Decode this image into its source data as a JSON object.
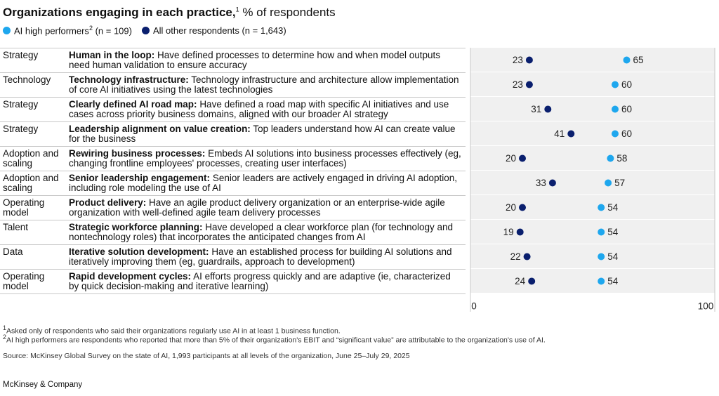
{
  "chart_data": {
    "type": "dotplot",
    "title": "Organizations engaging in each practice,",
    "title_note": "1",
    "subtitle": "% of respondents",
    "domains": [
      "Strategy",
      "Technology",
      "Strategy",
      "Strategy",
      "Adoption and scaling",
      "Adoption and scaling",
      "Operating model",
      "Talent",
      "Data",
      "Operating model"
    ],
    "categories": [
      "Human in the loop:",
      "Technology infrastructure:",
      "Clearly defined AI road map:",
      "Leadership alignment on value creation:",
      "Rewiring business processes:",
      "Senior leadership engagement:",
      "Product delivery:",
      "Strategic workforce planning:",
      "Iterative solution development:",
      "Rapid development cycles:"
    ],
    "descriptions": [
      "Have defined processes to determine how and when model outputs need human validation to ensure accuracy",
      "Technology infrastructure and architecture allow implementation of core AI initiatives using the latest technologies",
      "Have defined a road map with specific AI initiatives and use cases across priority business domains, aligned with our broader AI strategy",
      "Top leaders understand how AI can create value for the business",
      "Embeds AI solutions into business processes effectively (eg, changing frontline employees' processes, creating user interfaces)",
      "Senior leaders are actively engaged in driving AI adoption, including role modeling the use of AI",
      "Have an agile product delivery organization or an enterprise-wide agile organization with well-defined agile team delivery processes",
      "Have developed a clear workforce plan (for technology and nontechnology roles) that incorporates the anticipated changes from AI",
      "Have an established process for building AI solutions and iteratively improving them (eg, guardrails, approach to development)",
      "AI efforts progress quickly and are adaptive (ie, characterized by quick decision-making and iterative learning)"
    ],
    "series": [
      {
        "name": "AI high performers",
        "name_note": "2",
        "n_label": "(n = 109)",
        "color": "#1ea7ee",
        "values": [
          65,
          60,
          60,
          60,
          58,
          57,
          54,
          54,
          54,
          54
        ]
      },
      {
        "name": "All other respondents",
        "n_label": "(n = 1,643)",
        "color": "#0a1f6e",
        "values": [
          23,
          23,
          31,
          41,
          20,
          33,
          20,
          19,
          22,
          24
        ]
      }
    ],
    "xlim": [
      0,
      100
    ],
    "xticks": [
      0,
      100
    ],
    "footnotes": [
      {
        "mark": "1",
        "text": "Asked only of respondents who said their organizations regularly use AI in at least 1 business function."
      },
      {
        "mark": "2",
        "text": "AI high performers are respondents who reported that more than 5% of their organization's EBIT and “significant value” are attributable to the organization's use of AI."
      }
    ],
    "source": "Source: McKinsey Global Survey on the state of AI, 1,993 participants at all levels of the organization, June 25–July 29, 2025",
    "brand": "McKinsey & Company"
  }
}
